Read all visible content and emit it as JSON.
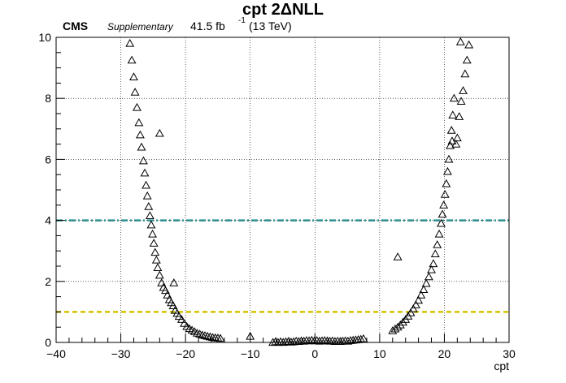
{
  "chart_data": {
    "type": "scatter",
    "title": "cpt 2ΔNLL",
    "experiment": "CMS",
    "tag": "Supplementary",
    "lumi": "41.5 fb",
    "lumi_exponent": "-1",
    "energy": "(13 TeV)",
    "xlabel": "cpt",
    "ylabel": "",
    "xlim": [
      -40,
      30
    ],
    "ylim": [
      0,
      10
    ],
    "grid": true,
    "marker": "open-triangle",
    "x_ticks": [
      -40,
      -30,
      -20,
      -10,
      0,
      10,
      20,
      30
    ],
    "y_ticks": [
      0,
      2,
      4,
      6,
      8,
      10
    ],
    "reference_lines": [
      {
        "y": 4,
        "color": "#2f8f8f",
        "style": "dash-dot"
      },
      {
        "y": 1,
        "color": "#d4c400",
        "style": "dashed"
      }
    ],
    "points": [
      [
        -28.6,
        9.8
      ],
      [
        -28.3,
        9.25
      ],
      [
        -28.0,
        8.7
      ],
      [
        -27.8,
        8.2
      ],
      [
        -27.5,
        7.7
      ],
      [
        -27.2,
        7.2
      ],
      [
        -27.0,
        6.8
      ],
      [
        -26.8,
        6.4
      ],
      [
        -26.5,
        5.95
      ],
      [
        -26.3,
        5.55
      ],
      [
        -26.1,
        5.15
      ],
      [
        -25.9,
        4.8
      ],
      [
        -25.7,
        4.45
      ],
      [
        -25.5,
        4.15
      ],
      [
        -25.3,
        3.85
      ],
      [
        -25.1,
        3.55
      ],
      [
        -24.9,
        3.25
      ],
      [
        -24.7,
        2.95
      ],
      [
        -24.5,
        2.7
      ],
      [
        -24.3,
        2.45
      ],
      [
        -24.0,
        2.2
      ],
      [
        -23.7,
        1.95
      ],
      [
        -23.4,
        1.8
      ],
      [
        -23.1,
        1.7
      ],
      [
        -22.8,
        1.55
      ],
      [
        -22.5,
        1.4
      ],
      [
        -22.2,
        1.3
      ],
      [
        -21.9,
        1.2
      ],
      [
        -21.6,
        1.05
      ],
      [
        -21.3,
        0.95
      ],
      [
        -21.0,
        0.85
      ],
      [
        -20.6,
        0.75
      ],
      [
        -20.2,
        0.62
      ],
      [
        -19.8,
        0.52
      ],
      [
        -19.4,
        0.45
      ],
      [
        -19.0,
        0.4
      ],
      [
        -18.6,
        0.35
      ],
      [
        -18.2,
        0.3
      ],
      [
        -17.8,
        0.27
      ],
      [
        -17.4,
        0.24
      ],
      [
        -17.0,
        0.22
      ],
      [
        -16.6,
        0.2
      ],
      [
        -16.2,
        0.18
      ],
      [
        -15.8,
        0.16
      ],
      [
        -15.4,
        0.15
      ],
      [
        -15.0,
        0.14
      ],
      [
        -14.6,
        0.13
      ],
      [
        -24.0,
        6.85
      ],
      [
        -21.8,
        1.95
      ],
      [
        -10.0,
        0.2
      ],
      [
        -6.5,
        0.0
      ],
      [
        -6.1,
        0.02
      ],
      [
        -5.7,
        0.0
      ],
      [
        -5.3,
        0.02
      ],
      [
        -4.9,
        0.0
      ],
      [
        -4.5,
        0.02
      ],
      [
        -4.1,
        0.03
      ],
      [
        -3.7,
        0.01
      ],
      [
        -3.3,
        0.02
      ],
      [
        -2.9,
        0.04
      ],
      [
        -2.5,
        0.03
      ],
      [
        -2.1,
        0.05
      ],
      [
        -1.7,
        0.04
      ],
      [
        -1.3,
        0.06
      ],
      [
        -0.9,
        0.05
      ],
      [
        -0.5,
        0.07
      ],
      [
        -0.1,
        0.05
      ],
      [
        0.3,
        0.06
      ],
      [
        0.7,
        0.04
      ],
      [
        1.1,
        0.05
      ],
      [
        1.5,
        0.06
      ],
      [
        1.9,
        0.05
      ],
      [
        2.3,
        0.04
      ],
      [
        2.7,
        0.05
      ],
      [
        3.1,
        0.03
      ],
      [
        3.5,
        0.04
      ],
      [
        3.9,
        0.03
      ],
      [
        4.3,
        0.04
      ],
      [
        4.7,
        0.05
      ],
      [
        5.1,
        0.04
      ],
      [
        5.5,
        0.06
      ],
      [
        5.9,
        0.07
      ],
      [
        6.3,
        0.08
      ],
      [
        6.7,
        0.09
      ],
      [
        7.1,
        0.1
      ],
      [
        7.5,
        0.12
      ],
      [
        12.0,
        0.38
      ],
      [
        12.4,
        0.44
      ],
      [
        12.8,
        0.5
      ],
      [
        13.2,
        0.57
      ],
      [
        13.6,
        0.66
      ],
      [
        14.0,
        0.75
      ],
      [
        14.4,
        0.86
      ],
      [
        14.8,
        0.97
      ],
      [
        15.2,
        1.1
      ],
      [
        15.6,
        1.23
      ],
      [
        16.0,
        1.38
      ],
      [
        16.4,
        1.55
      ],
      [
        16.8,
        1.73
      ],
      [
        17.2,
        1.93
      ],
      [
        17.6,
        2.15
      ],
      [
        18.0,
        2.38
      ],
      [
        18.3,
        2.58
      ],
      [
        12.8,
        2.8
      ],
      [
        18.6,
        2.9
      ],
      [
        18.9,
        3.2
      ],
      [
        19.2,
        3.55
      ],
      [
        19.5,
        3.9
      ],
      [
        19.7,
        4.2
      ],
      [
        19.9,
        4.5
      ],
      [
        20.1,
        4.85
      ],
      [
        20.3,
        5.2
      ],
      [
        20.5,
        5.6
      ],
      [
        20.7,
        6.0
      ],
      [
        20.9,
        6.45
      ],
      [
        21.1,
        6.95
      ],
      [
        21.3,
        7.45
      ],
      [
        21.5,
        8.0
      ],
      [
        21.2,
        6.6
      ],
      [
        21.8,
        6.5
      ],
      [
        22.0,
        6.7
      ],
      [
        22.3,
        7.4
      ],
      [
        22.6,
        7.9
      ],
      [
        22.9,
        8.25
      ],
      [
        23.2,
        8.8
      ],
      [
        23.5,
        9.25
      ],
      [
        23.8,
        9.75
      ],
      [
        22.5,
        9.85
      ]
    ]
  }
}
